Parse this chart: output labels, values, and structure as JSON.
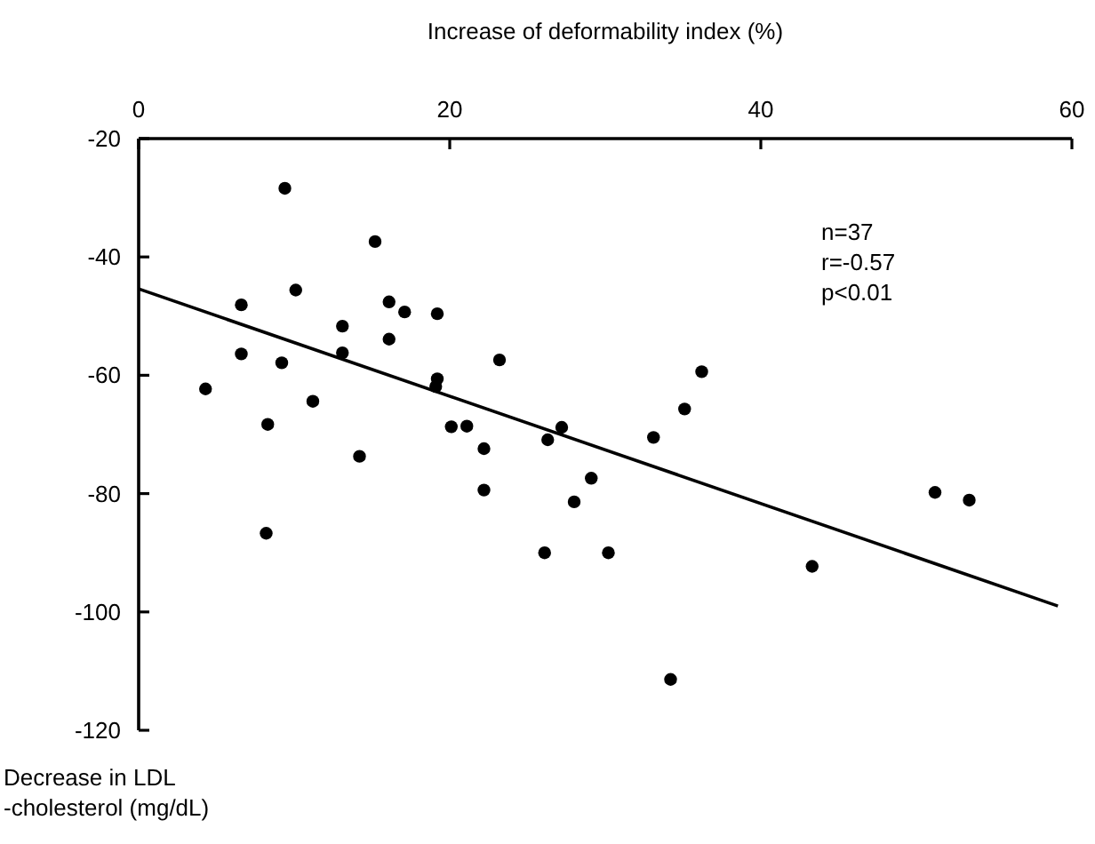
{
  "chart_data": {
    "type": "scatter",
    "xlabel": "Increase of deformability index (%)",
    "ylabel": "Decrease in LDL\n-cholesterol (mg/dL)",
    "xlim": [
      0,
      60
    ],
    "xticks": [
      0,
      20,
      40,
      60
    ],
    "ylim": [
      -120,
      -20
    ],
    "yticks": [
      -20,
      -40,
      -60,
      -80,
      -100,
      -120
    ],
    "grid": false,
    "series": [
      {
        "marker": "circle",
        "color": "#000000",
        "x": [
          9.4,
          15.2,
          10.1,
          6.6,
          16.1,
          17.1,
          19.2,
          13.1,
          16.1,
          6.6,
          13.1,
          9.2,
          23.2,
          19.2,
          19.1,
          4.3,
          11.2,
          8.3,
          20.1,
          21.1,
          22.2,
          26.3,
          27.2,
          14.2,
          22.2,
          29.1,
          28.0,
          8.2,
          26.1,
          30.2,
          36.2,
          35.1,
          33.1,
          43.3,
          34.2,
          51.2,
          53.4
        ],
        "values": [
          -28.4,
          -37.4,
          -45.6,
          -48.1,
          -47.6,
          -49.3,
          -49.6,
          -51.7,
          -53.9,
          -56.4,
          -56.2,
          -57.9,
          -57.4,
          -60.6,
          -61.9,
          -62.3,
          -64.4,
          -68.3,
          -68.7,
          -68.6,
          -72.4,
          -70.9,
          -68.8,
          -73.7,
          -79.4,
          -77.4,
          -81.4,
          -86.7,
          -90.0,
          -90.0,
          -59.4,
          -65.7,
          -70.5,
          -92.3,
          -111.4,
          -79.8,
          -81.1
        ]
      },
      {
        "type": "line",
        "color": "#000000",
        "x": [
          0,
          59.1
        ],
        "values": [
          -45.4,
          -99.0
        ]
      }
    ],
    "annotations": [
      "n=37",
      "r=-0.57",
      "p<0.01"
    ]
  }
}
